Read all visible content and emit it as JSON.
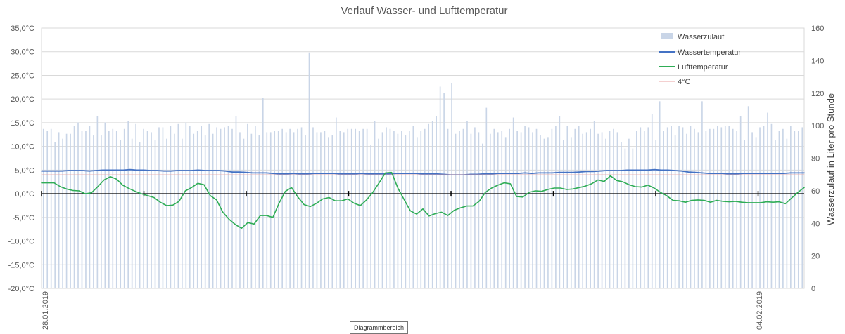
{
  "chart_data": {
    "type": "bar+line",
    "title": "Verlauf Wasser- und Lufttemperatur",
    "y_left": {
      "ticks": [
        "35,0°C",
        "30,0°C",
        "25,0°C",
        "20,0°C",
        "15,0°C",
        "10,0°C",
        "5,0°C",
        "0,0°C",
        "-5,0°C",
        "-10,0°C",
        "-15,0°C",
        "-20,0°C"
      ],
      "range": [
        -20,
        35
      ]
    },
    "y_right": {
      "label": "Wasserzulauf in Liter pro Stunde",
      "ticks": [
        "160",
        "140",
        "120",
        "100",
        "80",
        "60",
        "40",
        "20",
        "0"
      ],
      "range": [
        0,
        160
      ]
    },
    "x_labels": [
      "28.01.2019",
      "04.02.2019"
    ],
    "grid": true,
    "legend_position": "top-right",
    "series": [
      {
        "name": "Wasserzulauf",
        "kind": "bar",
        "axis": "right",
        "color": "#c9d5e7",
        "values": [
          98,
          97,
          98,
          90,
          96,
          92,
          95,
          95,
          100,
          102,
          97,
          97,
          100,
          94,
          106,
          94,
          102,
          97,
          98,
          97,
          91,
          98,
          103,
          92,
          101,
          90,
          98,
          97,
          96,
          91,
          99,
          99,
          92,
          100,
          95,
          101,
          92,
          102,
          100,
          95,
          97,
          100,
          94,
          101,
          95,
          99,
          98,
          99,
          100,
          98,
          106,
          96,
          92,
          101,
          95,
          100,
          94,
          117,
          96,
          96,
          97,
          97,
          98,
          96,
          98,
          96,
          98,
          99,
          94,
          145,
          99,
          96,
          96,
          97,
          93,
          94,
          105,
          97,
          96,
          98,
          98,
          98,
          97,
          98,
          98,
          88,
          103,
          92,
          96,
          99,
          98,
          97,
          95,
          97,
          94,
          97,
          100,
          93,
          97,
          98,
          101,
          103,
          106,
          124,
          120,
          98,
          126,
          95,
          97,
          98,
          103,
          95,
          99,
          96,
          89,
          111,
          95,
          98,
          96,
          97,
          93,
          98,
          105,
          97,
          96,
          100,
          99,
          96,
          98,
          94,
          92,
          93,
          98,
          100,
          106,
          91,
          100,
          93,
          98,
          100,
          95,
          96,
          98,
          103,
          95,
          96,
          92,
          97,
          98,
          96,
          90,
          86,
          92,
          86,
          97,
          99,
          97,
          99,
          107,
          91,
          115,
          97,
          99,
          100,
          94,
          100,
          99,
          95,
          100,
          98,
          96,
          115,
          97,
          98,
          98,
          100,
          99,
          100,
          100,
          98,
          97,
          106,
          91,
          112,
          96,
          93,
          99,
          100,
          108,
          101,
          91,
          97,
          98,
          92,
          100,
          97,
          97,
          99
        ],
        "legend_swatch": "bar"
      },
      {
        "name": "Wassertemperatur",
        "kind": "line",
        "axis": "left",
        "color": "#4472c4",
        "values": [
          4.8,
          4.8,
          4.8,
          4.8,
          4.9,
          4.9,
          4.9,
          4.8,
          4.9,
          5,
          5,
          5,
          5,
          5.1,
          5,
          5,
          4.9,
          4.9,
          4.8,
          4.8,
          4.9,
          4.9,
          4.9,
          5,
          4.9,
          4.9,
          4.9,
          4.8,
          4.6,
          4.6,
          4.5,
          4.4,
          4.4,
          4.4,
          4.3,
          4.2,
          4.2,
          4.3,
          4.2,
          4.2,
          4.3,
          4.3,
          4.3,
          4.3,
          4.2,
          4.2,
          4.2,
          4.3,
          4.2,
          4.2,
          4.2,
          4.2,
          4.3,
          4.3,
          4.3,
          4.3,
          4.2,
          4.2,
          4.2,
          4.1,
          4,
          4,
          4,
          4.1,
          4.1,
          4.2,
          4.2,
          4.3,
          4.3,
          4.3,
          4.3,
          4.4,
          4.3,
          4.4,
          4.4,
          4.4,
          4.5,
          4.5,
          4.5,
          4.6,
          4.7,
          4.7,
          4.8,
          4.9,
          4.9,
          4.9,
          5,
          5,
          5,
          5,
          5.1,
          5,
          5,
          4.9,
          4.8,
          4.6,
          4.5,
          4.4,
          4.3,
          4.3,
          4.3,
          4.2,
          4.2,
          4.3,
          4.3,
          4.3,
          4.3,
          4.3,
          4.3,
          4.3,
          4.4,
          4.4,
          4.4
        ],
        "legend_swatch": "line"
      },
      {
        "name": "Lufttemperatur",
        "kind": "line",
        "axis": "left",
        "color": "#2fad56",
        "values": [
          2.3,
          2.3,
          2.3,
          1.5,
          1,
          0.7,
          0.6,
          0,
          0.2,
          1.5,
          2.9,
          3.6,
          3.1,
          1.8,
          1.1,
          0.5,
          0,
          -0.4,
          -0.8,
          -1.8,
          -2.5,
          -2.4,
          -1.6,
          0.6,
          1.3,
          2.2,
          1.9,
          -0.4,
          -1.3,
          -3.9,
          -5.4,
          -6.5,
          -7.3,
          -6.1,
          -6.4,
          -4.6,
          -4.6,
          -5,
          -2,
          0.5,
          1.3,
          -0.7,
          -2.3,
          -2.7,
          -2,
          -1.1,
          -0.8,
          -1.5,
          -1.5,
          -1.1,
          -2,
          -2.5,
          -1.3,
          0.3,
          2.3,
          4.4,
          4.5,
          1.2,
          -1.2,
          -3.6,
          -4.3,
          -3.2,
          -4.7,
          -4.2,
          -3.9,
          -4.6,
          -3.5,
          -3,
          -2.6,
          -2.6,
          -1.6,
          0.3,
          1.2,
          1.8,
          2.3,
          2.1,
          -0.6,
          -0.7,
          0.3,
          0.6,
          0.5,
          0.9,
          1.2,
          1.2,
          0.9,
          1,
          1.3,
          1.6,
          2.1,
          2.9,
          2.6,
          3.8,
          2.8,
          2.5,
          1.9,
          1.5,
          1.4,
          1.8,
          1.2,
          0.3,
          -0.4,
          -1.4,
          -1.5,
          -1.8,
          -1.4,
          -1.3,
          -1.4,
          -1.8,
          -1.4,
          -1.6,
          -1.7,
          -1.6,
          -1.8,
          -1.9,
          -1.9,
          -1.9,
          -1.7,
          -1.8,
          -1.7,
          -2.1,
          -0.9,
          0.3,
          1.3
        ],
        "legend_swatch": "line"
      },
      {
        "name": "4°C",
        "kind": "line",
        "axis": "left",
        "color": "#e8a0a0",
        "values": [
          4,
          4
        ],
        "legend_swatch": "line"
      }
    ]
  },
  "ui": {
    "tooltip": "Diagrammbereich"
  }
}
